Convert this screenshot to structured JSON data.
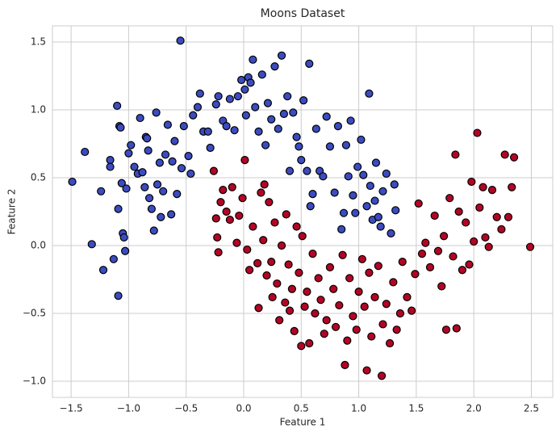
{
  "chart_data": {
    "type": "scatter",
    "title": "Moons Dataset",
    "xlabel": "Feature 1",
    "ylabel": "Feature 2",
    "xlim": [
      -1.662,
      2.686
    ],
    "ylim": [
      -1.119,
      1.619
    ],
    "xticks": [
      {
        "value": -1.5,
        "label": "−1.5"
      },
      {
        "value": -1.0,
        "label": "−1.0"
      },
      {
        "value": -0.5,
        "label": "−0.5"
      },
      {
        "value": 0,
        "label": "0.0"
      },
      0.5,
      {
        "value": 1,
        "label": "1.0"
      },
      1.5,
      {
        "value": 2,
        "label": "2.0"
      },
      2.5
    ],
    "yticks": [
      {
        "value": -1.0,
        "label": "−1.0"
      },
      {
        "value": -0.5,
        "label": "−0.5"
      },
      {
        "value": 0,
        "label": "0.0"
      },
      0.5,
      {
        "value": 1,
        "label": "1.0"
      },
      1.5
    ],
    "grid": true,
    "edgecolor": "#000000",
    "series": [
      {
        "color": "#3b4cc0",
        "x": [
          -1.49,
          -1.38,
          -1.32,
          -1.24,
          -1.22,
          -1.16,
          -1.16,
          -1.13,
          -1.1,
          -1.09,
          -1.09,
          -1.08,
          -1.07,
          -1.06,
          -1.05,
          -1.04,
          -1.03,
          -1.02,
          -1.0,
          -0.98,
          -0.95,
          -0.92,
          -0.9,
          -0.88,
          -0.86,
          -0.85,
          -0.84,
          -0.83,
          -0.82,
          -0.8,
          -0.78,
          -0.76,
          -0.75,
          -0.73,
          -0.72,
          -0.7,
          -0.68,
          -0.66,
          -0.63,
          -0.62,
          -0.6,
          -0.58,
          -0.55,
          -0.54,
          -0.52,
          -0.48,
          -0.46,
          -0.44,
          -0.4,
          -0.38,
          -0.35,
          -0.31,
          -0.29,
          -0.24,
          -0.22,
          -0.18,
          -0.15,
          -0.12,
          -0.08,
          -0.05,
          -0.02,
          0.01,
          0.02,
          0.04,
          0.06,
          0.08,
          0.1,
          0.13,
          0.16,
          0.19,
          0.21,
          0.24,
          0.27,
          0.3,
          0.33,
          0.35,
          0.38,
          0.4,
          0.43,
          0.46,
          0.48,
          0.5,
          0.52,
          0.55,
          0.57,
          0.58,
          0.6,
          0.63,
          0.66,
          0.69,
          0.72,
          0.75,
          0.79,
          0.82,
          0.85,
          0.87,
          0.89,
          0.91,
          0.93,
          0.95,
          0.97,
          0.99,
          1.02,
          1.04,
          1.07,
          1.09,
          1.1,
          1.12,
          1.14,
          1.15,
          1.17,
          1.19,
          1.21,
          1.24,
          1.28,
          1.31,
          1.32
        ],
        "y": [
          0.47,
          0.69,
          0.01,
          0.4,
          -0.18,
          0.63,
          0.58,
          -0.1,
          1.03,
          -0.37,
          0.27,
          0.88,
          0.87,
          0.46,
          0.09,
          0.06,
          -0.04,
          0.42,
          0.68,
          0.74,
          0.58,
          0.53,
          0.94,
          0.54,
          0.43,
          0.8,
          0.79,
          0.7,
          0.35,
          0.27,
          0.11,
          0.98,
          0.45,
          0.61,
          0.21,
          0.4,
          0.67,
          0.89,
          0.23,
          0.62,
          0.77,
          0.38,
          1.51,
          0.57,
          0.88,
          0.66,
          0.53,
          0.96,
          1.02,
          1.12,
          0.84,
          0.84,
          0.72,
          1.04,
          1.1,
          0.92,
          0.88,
          1.08,
          0.85,
          1.1,
          1.22,
          1.15,
          0.96,
          1.24,
          1.2,
          1.37,
          1.02,
          0.84,
          1.26,
          0.74,
          1.05,
          0.93,
          1.32,
          0.86,
          1.4,
          0.97,
          1.1,
          0.55,
          0.98,
          0.8,
          0.73,
          0.63,
          1.07,
          0.55,
          1.34,
          0.29,
          0.38,
          0.86,
          0.55,
          0.51,
          0.95,
          0.73,
          0.39,
          0.88,
          0.12,
          0.24,
          0.74,
          0.51,
          0.92,
          0.37,
          0.24,
          0.58,
          0.78,
          0.52,
          0.29,
          1.12,
          0.44,
          0.19,
          0.33,
          0.61,
          0.21,
          0.14,
          0.4,
          0.53,
          0.09,
          0.45,
          0.26
        ]
      },
      {
        "color": "#b40426",
        "x": [
          -0.26,
          -0.24,
          -0.23,
          -0.22,
          -0.2,
          -0.18,
          -0.15,
          -0.12,
          -0.1,
          -0.06,
          -0.04,
          -0.01,
          0.01,
          0.03,
          0.05,
          0.08,
          0.12,
          0.13,
          0.15,
          0.17,
          0.18,
          0.2,
          0.22,
          0.24,
          0.25,
          0.27,
          0.29,
          0.31,
          0.33,
          0.36,
          0.37,
          0.39,
          0.4,
          0.42,
          0.44,
          0.46,
          0.48,
          0.5,
          0.51,
          0.53,
          0.55,
          0.57,
          0.6,
          0.62,
          0.65,
          0.67,
          0.7,
          0.72,
          0.75,
          0.78,
          0.8,
          0.83,
          0.86,
          0.88,
          0.9,
          0.92,
          0.95,
          0.98,
          1.0,
          1.03,
          1.05,
          1.07,
          1.09,
          1.11,
          1.14,
          1.17,
          1.2,
          1.21,
          1.24,
          1.27,
          1.3,
          1.33,
          1.36,
          1.38,
          1.42,
          1.46,
          1.49,
          1.52,
          1.55,
          1.58,
          1.62,
          1.66,
          1.69,
          1.72,
          1.74,
          1.76,
          1.79,
          1.82,
          1.84,
          1.85,
          1.87,
          1.9,
          1.93,
          1.96,
          1.98,
          2.0,
          2.03,
          2.05,
          2.08,
          2.1,
          2.13,
          2.16,
          2.2,
          2.24,
          2.27,
          2.3,
          2.33,
          2.35,
          2.49
        ],
        "y": [
          0.55,
          0.2,
          0.06,
          -0.05,
          0.32,
          0.41,
          0.25,
          0.19,
          0.43,
          0.02,
          0.22,
          0.35,
          0.63,
          -0.03,
          -0.18,
          0.14,
          -0.13,
          -0.46,
          0.39,
          0.04,
          0.45,
          -0.22,
          0.32,
          -0.12,
          -0.38,
          0.17,
          -0.28,
          -0.55,
          0.0,
          -0.42,
          0.23,
          -0.14,
          -0.48,
          -0.32,
          -0.63,
          0.14,
          -0.2,
          -0.74,
          0.07,
          -0.45,
          -0.34,
          -0.72,
          -0.06,
          -0.5,
          -0.24,
          -0.4,
          -0.65,
          -0.55,
          -0.16,
          -0.32,
          -0.6,
          -0.44,
          -0.07,
          -0.88,
          -0.7,
          -0.24,
          -0.52,
          -0.62,
          -0.34,
          -0.1,
          -0.45,
          -0.92,
          -0.2,
          -0.67,
          -0.38,
          -0.15,
          -0.96,
          -0.58,
          -0.43,
          -0.72,
          -0.27,
          -0.62,
          -0.5,
          -0.12,
          -0.38,
          -0.48,
          -0.21,
          0.31,
          -0.06,
          0.02,
          -0.16,
          0.22,
          -0.04,
          -0.3,
          0.07,
          -0.62,
          0.35,
          -0.08,
          0.67,
          -0.61,
          0.25,
          -0.18,
          0.17,
          -0.14,
          0.47,
          0.03,
          0.83,
          0.28,
          0.43,
          0.06,
          -0.01,
          0.41,
          0.21,
          0.12,
          0.67,
          0.21,
          0.43,
          0.65,
          -0.01
        ]
      }
    ]
  }
}
